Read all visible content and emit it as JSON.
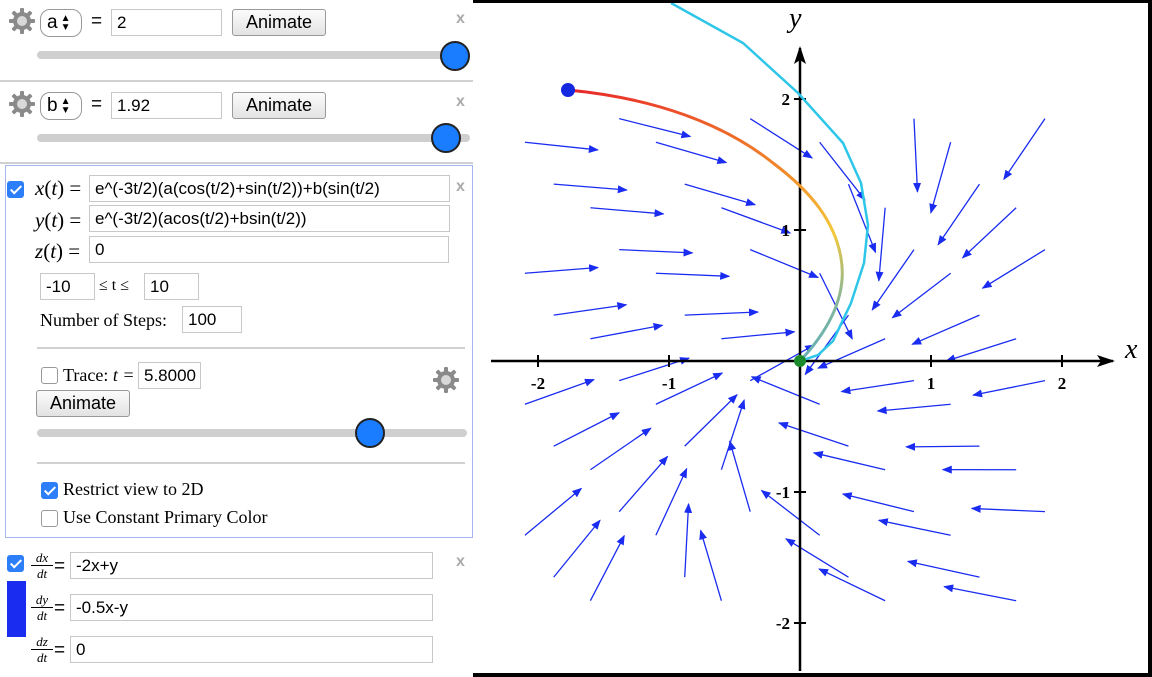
{
  "slider_a": {
    "name": "a",
    "value": "2",
    "animate_label": "Animate",
    "close": "x",
    "position": 1.0
  },
  "slider_b": {
    "name": "b",
    "value": "1.92",
    "animate_label": "Animate",
    "close": "x",
    "position": 0.96
  },
  "param_curve": {
    "x_label": "x(t) =",
    "x_expr": "e^(-3t/2)(a(cos(t/2)+sin(t/2))+b(sin(t/2)",
    "y_label": "y(t) =",
    "y_expr": "e^(-3t/2)(acos(t/2)+bsin(t/2))",
    "z_label": "z(t) =",
    "z_expr": "0",
    "t_min": "-10",
    "t_range_label": "≤ t ≤",
    "t_max": "10",
    "steps_label": "Number of Steps:",
    "steps": "100",
    "trace_label": "Trace:",
    "t_eq": "t =",
    "t_value": "5.8000",
    "animate_label": "Animate",
    "close": "x",
    "t_position": 0.78,
    "restrict_label": "Restrict view to 2D",
    "constant_color_label": "Use Constant Primary Color"
  },
  "vector_field": {
    "dx_num": "dx",
    "dx_den": "dt",
    "dx_expr": "-2x+y",
    "dy_num": "dy",
    "dy_den": "dt",
    "dy_expr": "-0.5x-y",
    "dz_num": "dz",
    "dz_den": "dt",
    "dz_expr": "0",
    "eq": "=",
    "close": "x",
    "color": "#1a2cf0"
  },
  "graph": {
    "x_axis_label": "x",
    "y_axis_label": "y",
    "x_ticks": [
      "-2",
      "-1",
      "1",
      "2"
    ],
    "y_ticks": [
      "2",
      "1",
      "-1",
      "-2"
    ],
    "field_color": "#1a2cf0",
    "curve_color": "#2ec6e8"
  }
}
